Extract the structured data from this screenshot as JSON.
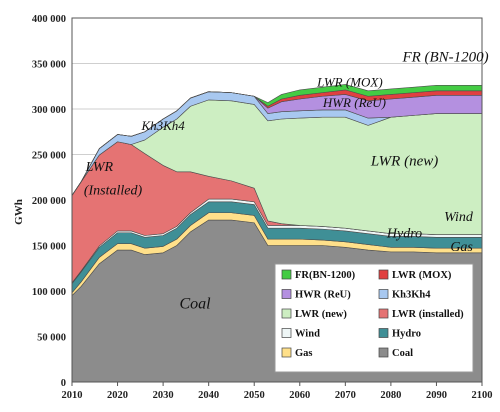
{
  "chart_data": {
    "type": "area",
    "stacked": true,
    "ylabel": "GWh",
    "xlim": [
      2010,
      2100
    ],
    "ylim": [
      0,
      400000
    ],
    "x_ticks": [
      "2010",
      "2020",
      "2030",
      "2040",
      "2050",
      "2060",
      "2070",
      "2080",
      "2090",
      "2100"
    ],
    "y_ticks": [
      "0",
      "50 000",
      "100 000",
      "150 000",
      "200 000",
      "250 000",
      "300 000",
      "350 000",
      "400 000"
    ],
    "grid": "horizontal",
    "legend_position": "bottom-right",
    "x": [
      2010,
      2012,
      2016,
      2020,
      2023,
      2026,
      2030,
      2033,
      2036,
      2040,
      2045,
      2050,
      2053,
      2056,
      2060,
      2065,
      2070,
      2075,
      2080,
      2085,
      2090,
      2095,
      2100
    ],
    "series": [
      {
        "name": "Coal",
        "color": "#8c8c8c",
        "values": [
          95000,
          105000,
          130000,
          145000,
          145000,
          140000,
          142000,
          150000,
          165000,
          178000,
          178000,
          175000,
          150000,
          150000,
          150000,
          150000,
          148000,
          145000,
          143000,
          143000,
          142000,
          142000,
          142000
        ]
      },
      {
        "name": "Gas",
        "color": "#ffe08a",
        "values": [
          3000,
          5000,
          7000,
          7000,
          7000,
          7000,
          7000,
          7000,
          7000,
          8000,
          8000,
          8000,
          7000,
          7000,
          7000,
          6000,
          6000,
          6000,
          5000,
          5000,
          5000,
          5000,
          5000
        ]
      },
      {
        "name": "Hydro",
        "color": "#3f8f96",
        "values": [
          10000,
          11000,
          11000,
          12000,
          12000,
          12000,
          12000,
          12000,
          12000,
          12000,
          12000,
          12000,
          12000,
          12000,
          12000,
          12000,
          12000,
          12000,
          12000,
          12000,
          12000,
          12000,
          12000
        ]
      },
      {
        "name": "Wind",
        "color": "#eef6f6",
        "values": [
          1000,
          1000,
          1500,
          2000,
          2000,
          2000,
          2000,
          2000,
          2000,
          3000,
          3000,
          3000,
          3000,
          3000,
          3000,
          3000,
          3000,
          3000,
          3000,
          3000,
          3000,
          3000,
          3000
        ]
      },
      {
        "name": "LWR (installed)",
        "color": "#e57373",
        "values": [
          96000,
          98000,
          100000,
          98000,
          95000,
          90000,
          75000,
          60000,
          45000,
          25000,
          20000,
          15000,
          5000,
          2000,
          0,
          0,
          0,
          0,
          0,
          0,
          0,
          0,
          0
        ]
      },
      {
        "name": "LWR (new)",
        "color": "#cdeec2",
        "values": [
          0,
          0,
          0,
          0,
          0,
          15000,
          42000,
          58000,
          72000,
          84000,
          88000,
          92000,
          110000,
          115000,
          118000,
          120000,
          122000,
          116000,
          128000,
          130000,
          133000,
          133000,
          133000
        ]
      },
      {
        "name": "Kh3Kh4",
        "color": "#a8c8f0",
        "values": [
          0,
          0,
          7000,
          8000,
          9000,
          9000,
          9000,
          9000,
          9000,
          9000,
          9000,
          9000,
          8000,
          8000,
          8000,
          8000,
          8000,
          8000,
          0,
          0,
          0,
          0,
          0
        ]
      },
      {
        "name": "HWR (ReU)",
        "color": "#b490e0",
        "values": [
          0,
          0,
          0,
          0,
          0,
          0,
          0,
          0,
          0,
          0,
          0,
          0,
          6000,
          11000,
          13000,
          15000,
          17000,
          19000,
          20000,
          20000,
          20000,
          20000,
          20000
        ]
      },
      {
        "name": "LWR (MOX)",
        "color": "#e04040",
        "values": [
          0,
          0,
          0,
          0,
          0,
          0,
          0,
          0,
          0,
          0,
          0,
          0,
          2000,
          3000,
          4000,
          4000,
          5000,
          5000,
          5000,
          5000,
          5000,
          5000,
          5000
        ]
      },
      {
        "name": "FR(BN-1200)",
        "color": "#44cc44",
        "values": [
          0,
          0,
          0,
          0,
          0,
          0,
          0,
          0,
          0,
          0,
          0,
          0,
          4000,
          5000,
          6000,
          6000,
          6000,
          6000,
          6000,
          6000,
          6000,
          6000,
          6000
        ]
      }
    ],
    "annotations": [
      {
        "text": "FR (BN-1200)"
      },
      {
        "text": "LWR (MOX)"
      },
      {
        "text": "HWR (ReU)"
      },
      {
        "text": "Kh3Kh4"
      },
      {
        "text": "LWR"
      },
      {
        "text": "(Installed)"
      },
      {
        "text": "LWR (new)"
      },
      {
        "text": "Wind"
      },
      {
        "text": "Hydro"
      },
      {
        "text": "Gas"
      },
      {
        "text": "Coal"
      }
    ],
    "legend": [
      {
        "label": "FR(BN-1200)",
        "color": "#44cc44"
      },
      {
        "label": "LWR (MOX)",
        "color": "#e04040"
      },
      {
        "label": "HWR (ReU)",
        "color": "#b490e0"
      },
      {
        "label": "Kh3Kh4",
        "color": "#a8c8f0"
      },
      {
        "label": "LWR (new)",
        "color": "#cdeec2"
      },
      {
        "label": "LWR (installed)",
        "color": "#e57373"
      },
      {
        "label": "Wind",
        "color": "#eef6f6"
      },
      {
        "label": "Hydro",
        "color": "#3f8f96"
      },
      {
        "label": "Gas",
        "color": "#ffe08a"
      },
      {
        "label": "Coal",
        "color": "#8c8c8c"
      }
    ]
  }
}
